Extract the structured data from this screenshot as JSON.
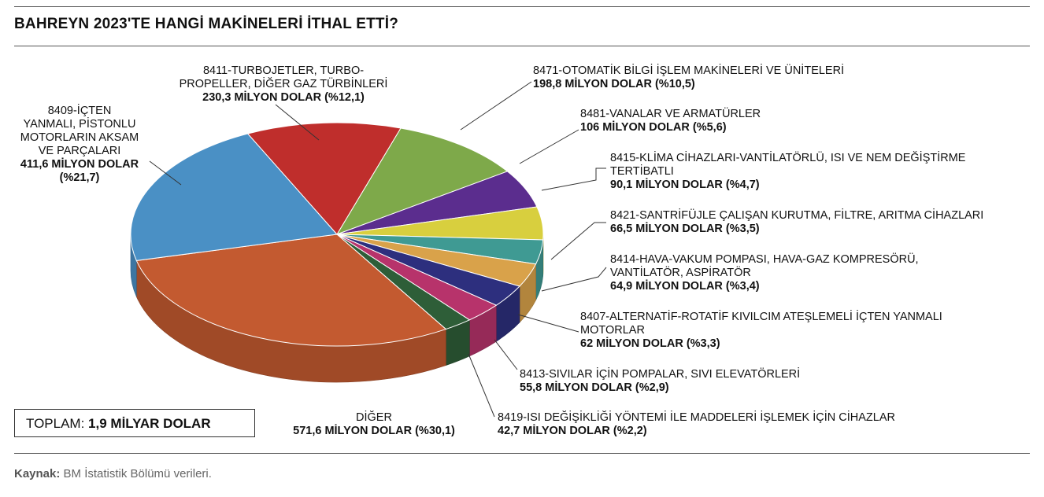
{
  "title": "BAHREYN 2023'TE HANGİ MAKİNELERİ İTHAL ETTİ?",
  "source": {
    "label": "Kaynak:",
    "text": " BM İstatistik Bölümü verileri."
  },
  "total": {
    "label": "TOPLAM: ",
    "value": "1,9 MİLYAR DOLAR"
  },
  "chart_data": {
    "type": "pie",
    "title": "BAHREYN 2023'TE HANGİ MAKİNELERİ İTHAL ETTİ?",
    "unit": "MİLYON DOLAR",
    "slices": [
      {
        "name": "8471-OTOMATİK BİLGİ İŞLEM MAKİNELERİ VE ÜNİTELERİ",
        "value": 198.8,
        "percent": 10.5,
        "value_label": "198,8 MİLYON DOLAR (%10,5)",
        "color": "#7ea94a"
      },
      {
        "name": "8481-VANALAR VE ARMATÜRLER",
        "value": 106,
        "percent": 5.6,
        "value_label": "106 MİLYON DOLAR (%5,6)",
        "color": "#5b2d8e"
      },
      {
        "name": "8415-KLİMA CİHAZLARI-VANTİLATÖRLÜ, ISI VE NEM DEĞİŞTİRME TERTİBATLI",
        "value": 90.1,
        "percent": 4.7,
        "value_label": "90,1 MİLYON DOLAR (%4,7)",
        "color": "#d8cf3e"
      },
      {
        "name": "8421-SANTRİFÜJLE ÇALIŞAN KURUTMA, FİLTRE, ARITMA CİHAZLARI",
        "value": 66.5,
        "percent": 3.5,
        "value_label": "66,5 MİLYON DOLAR (%3,5)",
        "color": "#3f9a93"
      },
      {
        "name": "8414-HAVA-VAKUM POMPASI, HAVA-GAZ KOMPRESÖRÜ, VANTİLATÖR, ASPİRATÖR",
        "value": 64.9,
        "percent": 3.4,
        "value_label": "64,9 MİLYON DOLAR (%3,4)",
        "color": "#d9a24a"
      },
      {
        "name": "8407-ALTERNATİF-ROTATİF KIVILCIM ATEŞLEMELİ İÇTEN YANMALI MOTORLAR",
        "value": 62,
        "percent": 3.3,
        "value_label": "62 MİLYON DOLAR (%3,3)",
        "color": "#2d2f7e"
      },
      {
        "name": "8413-SIVILAR İÇİN POMPALAR, SIVI ELEVATÖRLERİ",
        "value": 55.8,
        "percent": 2.9,
        "value_label": "55,8 MİLYON DOLAR (%2,9)",
        "color": "#b7336b"
      },
      {
        "name": "8419-ISI DEĞİŞİKLİĞİ YÖNTEMİ İLE MADDELERİ İŞLEMEK İÇİN CİHAZLAR",
        "value": 42.7,
        "percent": 2.2,
        "value_label": "42,7 MİLYON DOLAR (%2,2)",
        "color": "#2e5e38"
      },
      {
        "name": "DİĞER",
        "value": 571.6,
        "percent": 30.1,
        "value_label": "571,6 MİLYON DOLAR (%30,1)",
        "color": "#c35a30"
      },
      {
        "name": "8409-İÇTEN YANMALI, PİSTONLU MOTORLARIN AKSAM VE PARÇALARI",
        "value": 411.6,
        "percent": 21.7,
        "value_label": "411,6 MİLYON DOLAR (%21,7)",
        "color": "#4a90c5"
      },
      {
        "name": "8411-TURBOJETLER, TURBO-PROPELLER, DİĞER GAZ TÜRBİNLERİ",
        "value": 230.3,
        "percent": 12.1,
        "value_label": "230,3 MİLYON DOLAR (%12,1)",
        "color": "#bf2e2c"
      }
    ]
  },
  "labels": {
    "s8409": {
      "name": "8409-İÇTEN\nYANMALI, PİSTONLU\nMOTORLARIN AKSAM\nVE PARÇALARI",
      "value": "411,6 MİLYON DOLAR\n(%21,7)"
    },
    "s8411": {
      "name": "8411-TURBOJETLER, TURBO-\nPROPELLER, DİĞER GAZ TÜRBİNLERİ",
      "value": "230,3 MİLYON DOLAR (%12,1)"
    },
    "s8471": {
      "name": "8471-OTOMATİK BİLGİ İŞLEM MAKİNELERİ VE ÜNİTELERİ",
      "value": "198,8 MİLYON DOLAR (%10,5)"
    },
    "s8481": {
      "name": "8481-VANALAR VE ARMATÜRLER",
      "value": "106 MİLYON DOLAR (%5,6)"
    },
    "s8415": {
      "name": "8415-KLİMA CİHAZLARI-VANTİLATÖRLÜ, ISI VE NEM DEĞİŞTİRME\nTERTİBATLI",
      "value": "90,1 MİLYON DOLAR (%4,7)"
    },
    "s8421": {
      "name": "8421-SANTRİFÜJLE ÇALIŞAN KURUTMA, FİLTRE, ARITMA CİHAZLARI",
      "value": "66,5 MİLYON DOLAR (%3,5)"
    },
    "s8414": {
      "name": "8414-HAVA-VAKUM POMPASI, HAVA-GAZ KOMPRESÖRÜ,\nVANTİLATÖR, ASPİRATÖR",
      "value": "64,9 MİLYON DOLAR (%3,4)"
    },
    "s8407": {
      "name": "8407-ALTERNATİF-ROTATİF KIVILCIM ATEŞLEMELİ İÇTEN YANMALI\nMOTORLAR",
      "value": "62 MİLYON DOLAR (%3,3)"
    },
    "s8413": {
      "name": "8413-SIVILAR İÇİN POMPALAR, SIVI ELEVATÖRLERİ",
      "value": "55,8 MİLYON DOLAR (%2,9)"
    },
    "s8419": {
      "name": "8419-ISI DEĞİŞİKLİĞİ YÖNTEMİ İLE MADDELERİ İŞLEMEK İÇİN CİHAZLAR",
      "value": "42,7 MİLYON DOLAR (%2,2)"
    },
    "diger": {
      "name": "DİĞER",
      "value": "571,6 MİLYON DOLAR (%30,1)"
    }
  }
}
